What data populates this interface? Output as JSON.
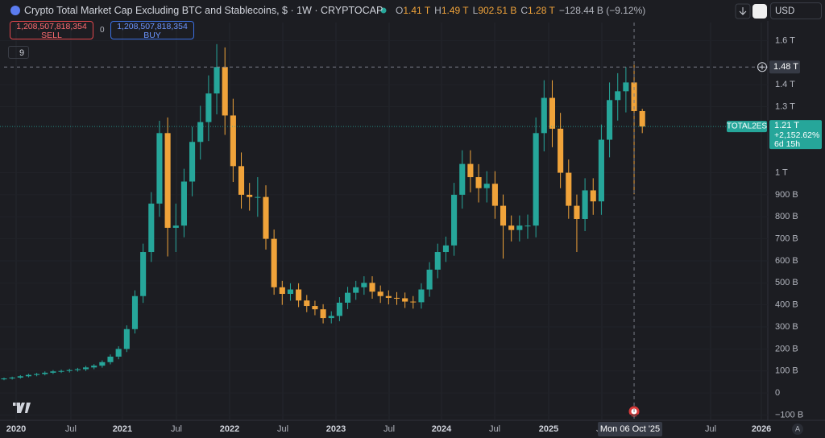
{
  "header": {
    "title": "Crypto Total Market Cap Excluding BTC and Stablecoins, $ · 1W · CRYPTOCAP",
    "ohlc": [
      {
        "key": "O",
        "value": "1.41 T"
      },
      {
        "key": "H",
        "value": "1.49 T"
      },
      {
        "key": "L",
        "value": "902.51 B"
      },
      {
        "key": "C",
        "value": "1.28 T"
      }
    ],
    "change": "−128.44 B (−9.12%)",
    "sell_price": "1,208,507,818,354",
    "sell": "SELL",
    "spread": "0",
    "buy_price": "1,208,507,818,354",
    "buy": "BUY",
    "indicators": "9",
    "currency": "USD",
    "auto_scale": "A"
  },
  "chart_data": {
    "type": "candlestick",
    "up_color": "#26a69a",
    "down_color": "#f0a33a",
    "grid": true,
    "open": [
      62,
      66,
      70,
      76,
      82,
      86,
      92,
      98,
      100,
      104,
      108,
      116,
      124,
      140,
      165,
      200,
      290,
      440,
      640,
      860,
      1180,
      750,
      760,
      960,
      1140,
      1230,
      1360,
      1480,
      1260,
      1030,
      900,
      890,
      890,
      700,
      480,
      450,
      470,
      420,
      395,
      380,
      340,
      350,
      410,
      455,
      480,
      500,
      460,
      440,
      432,
      430,
      415,
      412,
      470,
      560,
      640,
      670,
      900,
      1040,
      980,
      930,
      950,
      850,
      760,
      740,
      760,
      760,
      1180,
      1340,
      1200,
      1000,
      850,
      790,
      920,
      870,
      1150,
      1330,
      1370,
      1410,
      1280
    ],
    "high": [
      70,
      74,
      81,
      87,
      91,
      98,
      104,
      106,
      110,
      114,
      123,
      131,
      148,
      175,
      212,
      307,
      466,
      678,
      912,
      1236,
      1251,
      860,
      1018,
      1208,
      1304,
      1442,
      1584,
      1569,
      1336,
      1092,
      954,
      980,
      943,
      742,
      509,
      498,
      498,
      445,
      419,
      403,
      371,
      435,
      482,
      509,
      530,
      530,
      488,
      466,
      458,
      456,
      440,
      498,
      594,
      678,
      710,
      954,
      1102,
      1102,
      1039,
      1007,
      1007,
      901,
      806,
      806,
      810,
      1251,
      1420,
      1420,
      1272,
      1060,
      901,
      975,
      975,
      1219,
      1410,
      1452,
      1480,
      1490,
      1290
    ],
    "low": [
      58,
      61,
      65,
      71,
      76,
      80,
      86,
      91,
      93,
      97,
      100,
      108,
      115,
      130,
      153,
      186,
      270,
      409,
      595,
      800,
      620,
      640,
      707,
      893,
      1060,
      1144,
      1265,
      1172,
      958,
      837,
      828,
      800,
      651,
      446,
      400,
      419,
      390,
      367,
      353,
      316,
      316,
      326,
      381,
      423,
      446,
      428,
      409,
      402,
      400,
      386,
      383,
      383,
      437,
      521,
      595,
      623,
      837,
      911,
      865,
      865,
      791,
      610,
      688,
      688,
      700,
      707,
      1097,
      1116,
      930,
      791,
      640,
      735,
      809,
      809,
      1070,
      1237,
      1274,
      902.51,
      1180
    ],
    "close": [
      66,
      70,
      76,
      82,
      86,
      92,
      98,
      100,
      104,
      108,
      116,
      124,
      140,
      165,
      200,
      290,
      440,
      640,
      860,
      1180,
      750,
      760,
      960,
      1140,
      1230,
      1360,
      1480,
      1260,
      1030,
      900,
      890,
      890,
      700,
      480,
      450,
      470,
      420,
      395,
      380,
      340,
      350,
      410,
      455,
      480,
      500,
      460,
      440,
      432,
      430,
      415,
      412,
      470,
      560,
      640,
      670,
      900,
      1040,
      980,
      930,
      950,
      850,
      760,
      740,
      760,
      760,
      1180,
      1340,
      1200,
      1000,
      850,
      790,
      920,
      870,
      1150,
      1330,
      1370,
      1410,
      1280,
      1210
    ],
    "ylim": [
      -124,
      1682
    ],
    "yticks": [
      {
        "value": -100,
        "label": "−100 B"
      },
      0,
      {
        "value": 100,
        "label": "100 B"
      },
      {
        "value": 200,
        "label": "200 B"
      },
      {
        "value": 300,
        "label": "300 B"
      },
      {
        "value": 400,
        "label": "400 B"
      },
      {
        "value": 500,
        "label": "500 B"
      },
      {
        "value": 600,
        "label": "600 B"
      },
      {
        "value": 700,
        "label": "700 B"
      },
      {
        "value": 800,
        "label": "800 B"
      },
      {
        "value": 900,
        "label": "900 B"
      },
      {
        "value": 1000,
        "label": "1 T"
      },
      {
        "value": 1300,
        "label": "1.3 T"
      },
      {
        "value": 1400,
        "label": "1.4 T"
      },
      {
        "value": 1600,
        "label": "1.6 T"
      }
    ],
    "xlim": [
      -0.49,
      93.34
    ],
    "xticks": [
      {
        "value": 1.48,
        "label": "2020"
      },
      {
        "value": 8.17,
        "label": "Jul"
      },
      {
        "value": 14.47,
        "label": "2021"
      },
      {
        "value": 21.07,
        "label": "Jul"
      },
      {
        "value": 27.57,
        "label": "2022"
      },
      {
        "value": 34.07,
        "label": "Jul"
      },
      {
        "value": 40.57,
        "label": "2023"
      },
      {
        "value": 47.07,
        "label": "Jul"
      },
      {
        "value": 53.47,
        "label": "2024"
      },
      {
        "value": 59.97,
        "label": "Jul"
      },
      {
        "value": 66.56,
        "label": "2025"
      },
      {
        "value": 73.06,
        "label": "Jul"
      },
      {
        "value": 86.35,
        "label": "Jul"
      },
      {
        "value": 92.56,
        "label": "2026"
      }
    ],
    "crosshair": {
      "x": 77,
      "x_label": "Mon 06 Oct '25",
      "y": {
        "value": 1480,
        "label": "1.48 T"
      }
    },
    "last_price": {
      "value": 1210,
      "label": "1.21 T",
      "symbol": "TOTAL2ES",
      "change": "+2,152.62%",
      "countdown": "6d 15h"
    }
  }
}
